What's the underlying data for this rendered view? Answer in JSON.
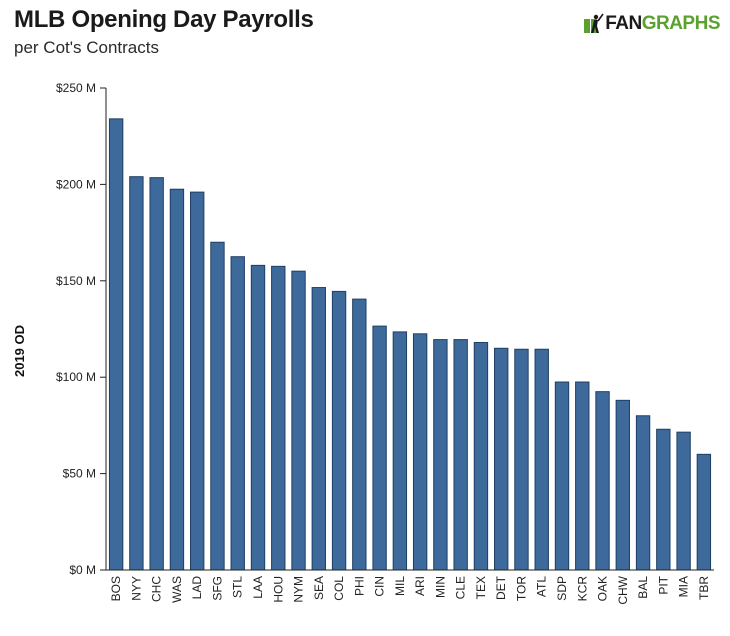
{
  "header": {
    "title": "MLB Opening Day Payrolls",
    "subtitle": "per Cot's Contracts"
  },
  "logo": {
    "fan": "FAN",
    "graphs": "GRAPHS",
    "icon": "fangraphs-batter-icon",
    "colors": {
      "fan": "#1a1a1a",
      "graphs": "#5ba12f"
    }
  },
  "chart_data": {
    "type": "bar",
    "title": "MLB Opening Day Payrolls",
    "subtitle": "per Cot's Contracts",
    "xlabel": "",
    "ylabel": "2019 OD",
    "ylim": [
      0,
      250
    ],
    "yticks": [
      0,
      50,
      100,
      150,
      200,
      250
    ],
    "ytick_labels": [
      "$0 M",
      "$50 M",
      "$100 M",
      "$150 M",
      "$200 M",
      "$250 M"
    ],
    "grid": false,
    "legend": "none",
    "bar_color": "#3d6a9b",
    "categories": [
      "BOS",
      "NYY",
      "CHC",
      "WAS",
      "LAD",
      "SFG",
      "STL",
      "LAA",
      "HOU",
      "NYM",
      "SEA",
      "COL",
      "PHI",
      "CIN",
      "MIL",
      "ARI",
      "MIN",
      "CLE",
      "TEX",
      "DET",
      "TOR",
      "ATL",
      "SDP",
      "KCR",
      "OAK",
      "CHW",
      "BAL",
      "PIT",
      "MIA",
      "TBR"
    ],
    "values": [
      234,
      204,
      203.5,
      197.5,
      196,
      170,
      162.5,
      158,
      157.5,
      155,
      146.5,
      144.5,
      140.5,
      126.5,
      123.5,
      122.5,
      119.5,
      119.5,
      118,
      115,
      114.5,
      114.5,
      97.5,
      97.5,
      92.5,
      88,
      80,
      73,
      71.5,
      60
    ]
  }
}
